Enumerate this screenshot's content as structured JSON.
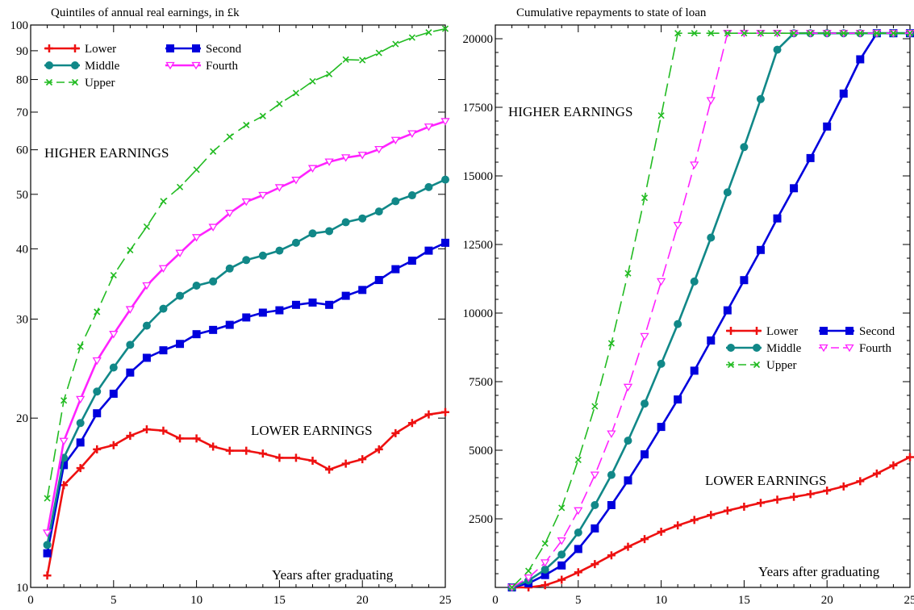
{
  "chart_data": [
    {
      "type": "line",
      "title": "Quintiles of annual real earnings, in £k",
      "xlabel": "Years after graduating",
      "ylabel": "",
      "yscale": "log",
      "xlim": [
        0,
        25
      ],
      "ylim": [
        10,
        100
      ],
      "x_ticks": [
        0,
        5,
        10,
        15,
        20,
        25
      ],
      "y_ticks": [
        10,
        20,
        30,
        40,
        50,
        60,
        70,
        80,
        90,
        100
      ],
      "annotations": [
        "HIGHER EARNINGS",
        "LOWER EARNINGS"
      ],
      "legend": {
        "placement": "top-left",
        "columns": 2
      },
      "x": [
        1,
        2,
        3,
        4,
        5,
        6,
        7,
        8,
        9,
        10,
        11,
        12,
        13,
        14,
        15,
        16,
        17,
        18,
        19,
        20,
        21,
        22,
        23,
        24,
        25
      ],
      "series": [
        {
          "name": "Lower",
          "color": "#ee1111",
          "marker": "plus",
          "dash": "solid",
          "values": [
            10.5,
            15.2,
            16.3,
            17.6,
            17.9,
            18.6,
            19.1,
            19.0,
            18.4,
            18.4,
            17.8,
            17.5,
            17.5,
            17.3,
            17.0,
            17.0,
            16.8,
            16.2,
            16.6,
            16.9,
            17.6,
            18.8,
            19.6,
            20.3,
            20.5
          ]
        },
        {
          "name": "Second",
          "color": "#0000dd",
          "marker": "square",
          "dash": "solid",
          "values": [
            11.5,
            16.5,
            18.1,
            20.4,
            22.1,
            24.1,
            25.6,
            26.4,
            27.1,
            28.2,
            28.7,
            29.3,
            30.2,
            30.8,
            31.1,
            31.8,
            32.1,
            31.8,
            33.0,
            33.8,
            35.2,
            36.8,
            38.1,
            39.7,
            41.0
          ]
        },
        {
          "name": "Middle",
          "color": "#118888",
          "marker": "circle",
          "dash": "solid",
          "values": [
            11.9,
            17.0,
            19.6,
            22.3,
            24.6,
            27.0,
            29.2,
            31.3,
            33.0,
            34.4,
            35.0,
            36.9,
            38.2,
            38.9,
            39.7,
            41.0,
            42.6,
            43.0,
            44.6,
            45.3,
            46.6,
            48.6,
            49.8,
            51.5,
            53.1
          ]
        },
        {
          "name": "Fourth",
          "color": "#ff22ff",
          "marker": "triangle-down",
          "dash": "solid",
          "values": [
            12.5,
            18.2,
            21.6,
            25.3,
            28.2,
            31.2,
            34.4,
            36.9,
            39.3,
            41.9,
            43.7,
            46.3,
            48.5,
            49.8,
            51.4,
            53.0,
            55.6,
            57.1,
            58.1,
            58.7,
            60.1,
            62.4,
            64.1,
            65.9,
            67.4
          ]
        },
        {
          "name": "Upper",
          "color": "#22bb22",
          "marker": "x",
          "dash": "dashed",
          "values": [
            14.4,
            21.5,
            26.8,
            30.9,
            35.9,
            39.8,
            43.8,
            48.6,
            51.5,
            55.3,
            59.6,
            63.3,
            66.4,
            68.9,
            72.4,
            75.7,
            79.4,
            81.8,
            86.8,
            86.6,
            89.2,
            92.5,
            95.0,
            97.0,
            98.5
          ]
        }
      ]
    },
    {
      "type": "line",
      "title": "Cumulative repayments to state of loan",
      "xlabel": "Years after graduating",
      "ylabel": "",
      "xlim": [
        0,
        25
      ],
      "ylim": [
        0,
        20500
      ],
      "x_ticks": [
        0,
        5,
        10,
        15,
        20,
        25
      ],
      "y_ticks": [
        2500,
        5000,
        7500,
        10000,
        12500,
        15000,
        17500,
        20000
      ],
      "annotations": [
        "HIGHER EARNINGS",
        "LOWER EARNINGS"
      ],
      "legend": {
        "placement": "center-right",
        "columns": 2
      },
      "x": [
        1,
        2,
        3,
        4,
        5,
        6,
        7,
        8,
        9,
        10,
        11,
        12,
        13,
        14,
        15,
        16,
        17,
        18,
        19,
        20,
        21,
        22,
        23,
        24,
        25
      ],
      "series": [
        {
          "name": "Lower",
          "color": "#ee1111",
          "marker": "plus",
          "dash": "solid",
          "values": [
            0,
            0,
            80,
            280,
            550,
            850,
            1170,
            1480,
            1760,
            2030,
            2260,
            2460,
            2640,
            2800,
            2940,
            3080,
            3200,
            3300,
            3400,
            3530,
            3680,
            3870,
            4150,
            4450,
            4750
          ]
        },
        {
          "name": "Second",
          "color": "#0000dd",
          "marker": "square",
          "dash": "solid",
          "values": [
            0,
            150,
            450,
            800,
            1400,
            2150,
            3000,
            3900,
            4850,
            5850,
            6850,
            7900,
            9000,
            10100,
            11200,
            12300,
            13450,
            14550,
            15650,
            16800,
            18000,
            19250,
            20200,
            20200,
            20200
          ]
        },
        {
          "name": "Middle",
          "color": "#118888",
          "marker": "circle",
          "dash": "solid",
          "values": [
            0,
            250,
            650,
            1200,
            2000,
            3000,
            4100,
            5350,
            6700,
            8150,
            9600,
            11150,
            12750,
            14400,
            16050,
            17800,
            19600,
            20200,
            20200,
            20200,
            20200,
            20200,
            20200,
            20200,
            20200
          ]
        },
        {
          "name": "Fourth",
          "color": "#ff22ff",
          "marker": "triangle-down",
          "dash": "dashed",
          "values": [
            0,
            350,
            900,
            1700,
            2800,
            4100,
            5600,
            7300,
            9150,
            11150,
            13200,
            15400,
            17750,
            20200,
            20200,
            20200,
            20200,
            20200,
            20200,
            20200,
            20200,
            20200,
            20200,
            20200,
            20200
          ]
        },
        {
          "name": "Upper",
          "color": "#22bb22",
          "marker": "x",
          "dash": "dashed",
          "values": [
            0,
            600,
            1600,
            2900,
            4650,
            6600,
            8900,
            11450,
            14200,
            17200,
            20200,
            20200,
            20200,
            20200,
            20200,
            20200,
            20200,
            20200,
            20200,
            20200,
            20200,
            20200,
            20200,
            20200,
            20200
          ]
        }
      ]
    }
  ]
}
